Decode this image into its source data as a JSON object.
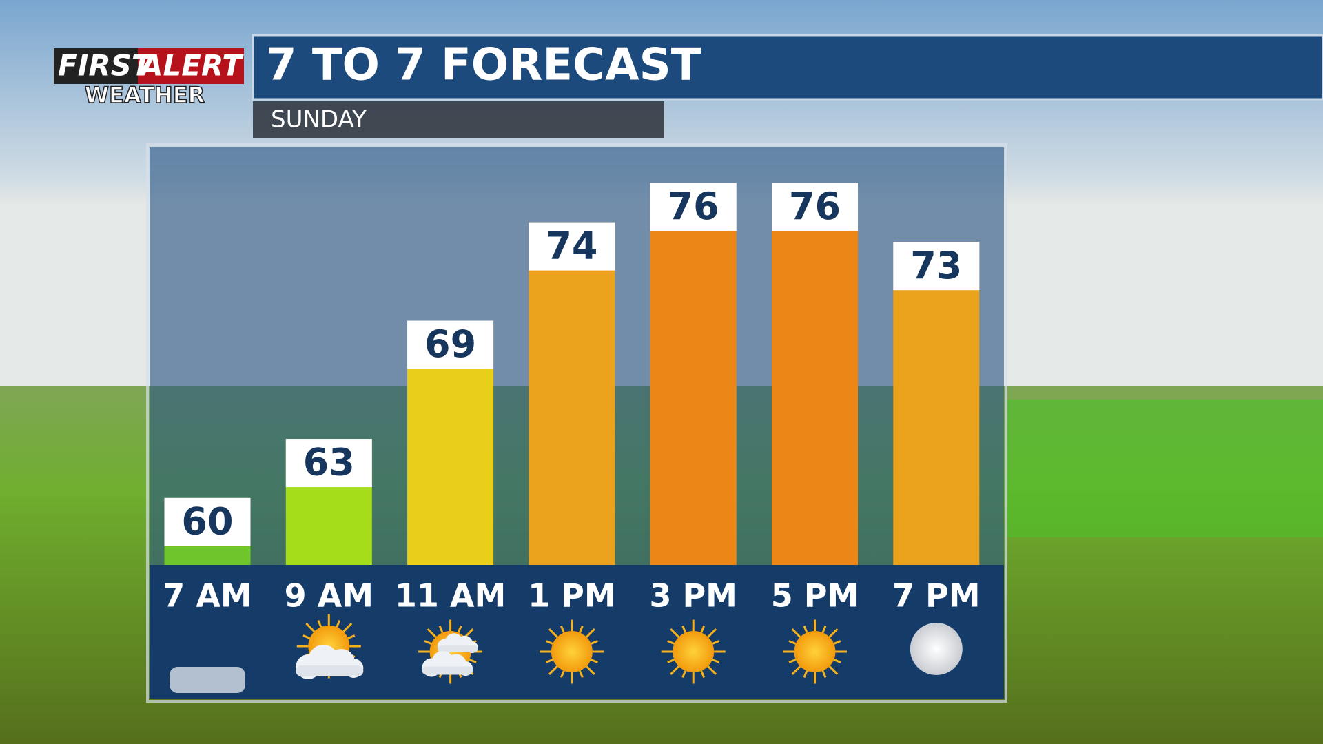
{
  "logo": {
    "first": "FIRST",
    "alert": "ALERT",
    "weather": "WEATHER"
  },
  "chart_data": {
    "type": "bar",
    "title": "7 TO 7 FORECAST",
    "subtitle": "SUNDAY",
    "categories": [
      "7 AM",
      "9 AM",
      "11 AM",
      "1 PM",
      "3 PM",
      "5 PM",
      "7 PM"
    ],
    "values": [
      60,
      63,
      69,
      74,
      76,
      76,
      73
    ],
    "colors": [
      "#6ec62c",
      "#a6dd1b",
      "#e9cf19",
      "#eaa11b",
      "#eb8617",
      "#eb8617",
      "#eaa11b"
    ],
    "ylim": [
      56.6,
      77.8
    ]
  }
}
